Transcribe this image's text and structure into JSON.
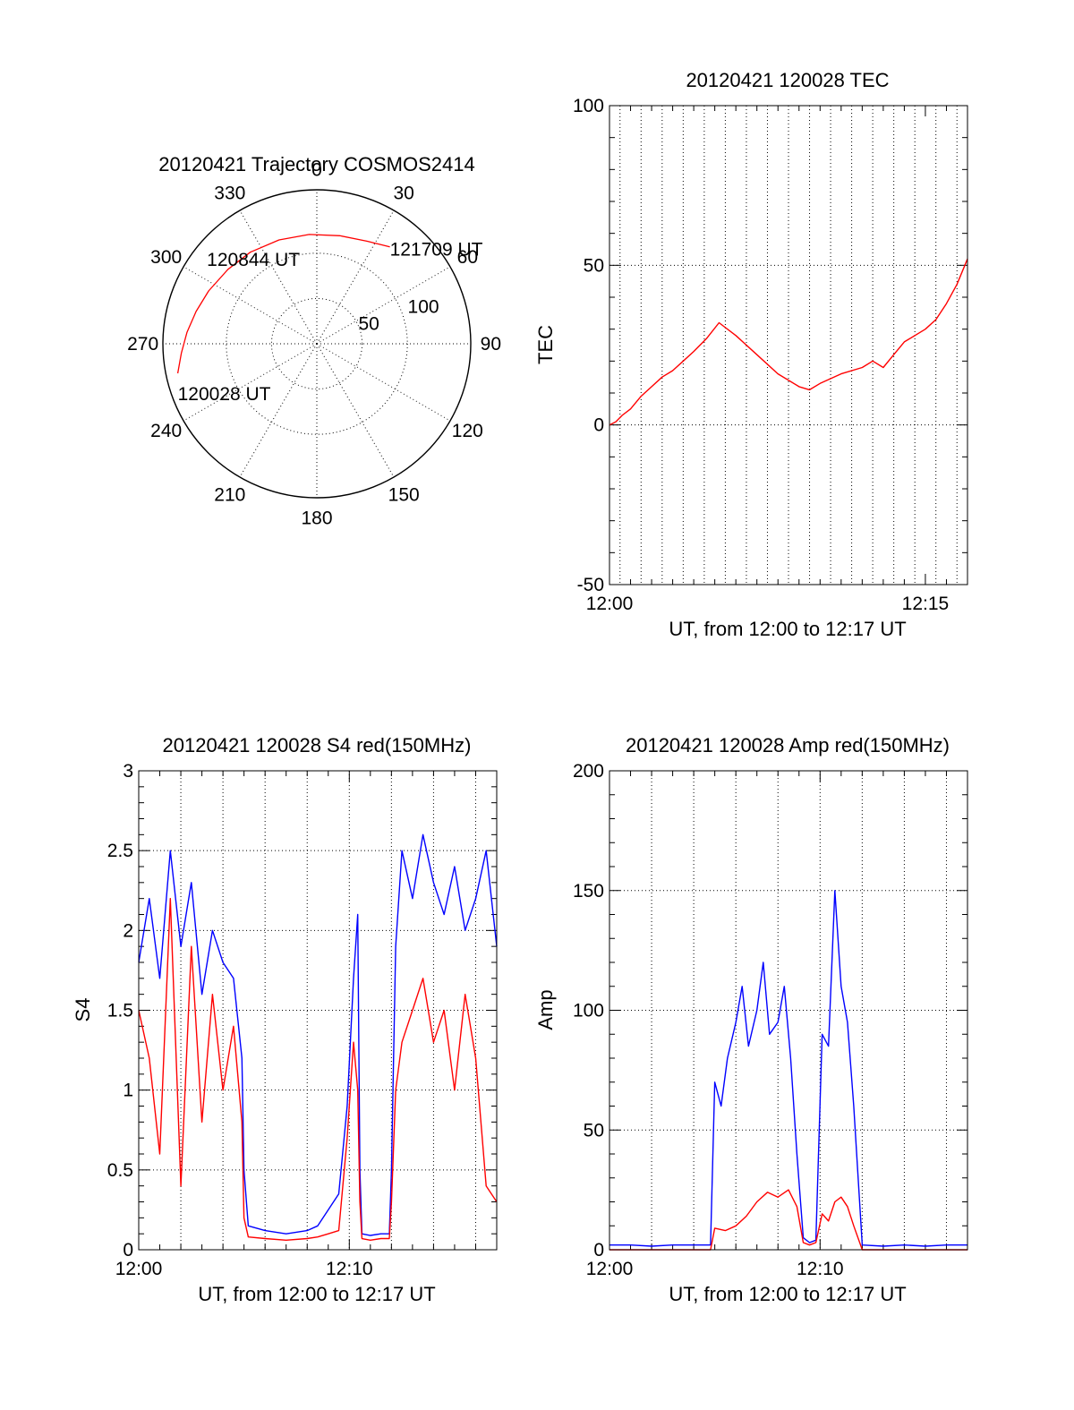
{
  "chart_data": [
    {
      "id": "trajectory",
      "type": "polar",
      "title": "20120421 Trajectory COSMOS2414",
      "azimuth_labels": [
        "0",
        "30",
        "60",
        "90",
        "120",
        "150",
        "180",
        "210",
        "240",
        "270",
        "300",
        "330"
      ],
      "azimuth_values": [
        0,
        30,
        60,
        90,
        120,
        150,
        180,
        210,
        240,
        270,
        300,
        330
      ],
      "radial_labels": [
        "50",
        "100"
      ],
      "radial_values": [
        50,
        100
      ],
      "radial_range": [
        0,
        170
      ],
      "grid": true,
      "series": [
        {
          "color": "#ff0000",
          "points": [
            {
              "az": 258,
              "r": 157
            },
            {
              "az": 266,
              "r": 150
            },
            {
              "az": 275,
              "r": 144
            },
            {
              "az": 285,
              "r": 138
            },
            {
              "az": 296,
              "r": 133
            },
            {
              "az": 310,
              "r": 128
            },
            {
              "az": 324,
              "r": 125
            },
            {
              "az": 340,
              "r": 122
            },
            {
              "az": 356,
              "r": 121
            },
            {
              "az": 12,
              "r": 122
            },
            {
              "az": 26,
              "r": 126
            },
            {
              "az": 37,
              "r": 134
            }
          ]
        }
      ],
      "annotations": [
        {
          "text": "121709 UT",
          "az": 37,
          "r": 134
        },
        {
          "text": "120844 UT",
          "az": 320,
          "r": 112
        },
        {
          "text": "120028 UT",
          "az": 258,
          "r": 157
        }
      ]
    },
    {
      "id": "tec",
      "type": "line",
      "title": "20120421 120028 TEC",
      "xlabel": "UT, from 12:00 to 12:17 UT",
      "ylabel": "TEC",
      "xlim": [
        0,
        17
      ],
      "ylim": [
        -50,
        100
      ],
      "x_ticks": [
        0,
        15
      ],
      "x_tick_labels": [
        "12:00",
        "12:15"
      ],
      "x_minor_grid": [
        0.5,
        1.5,
        2.5,
        3.5,
        4.5,
        5.5,
        6.5,
        7.5,
        8.5,
        9.5,
        10.5,
        11.5,
        12.5,
        13.5,
        14.5,
        15.5,
        16.5
      ],
      "y_ticks": [
        -50,
        0,
        50,
        100
      ],
      "grid": true,
      "series": [
        {
          "color": "#ff0000",
          "x": [
            0.0,
            0.3,
            0.6,
            1.0,
            1.5,
            2.0,
            2.5,
            3.0,
            3.5,
            4.0,
            4.6,
            5.2,
            6.0,
            7.0,
            8.0,
            9.0,
            9.5,
            10.0,
            11.0,
            12.0,
            12.5,
            13.0,
            13.5,
            14.0,
            15.0,
            15.5,
            16.0,
            16.5,
            17.0
          ],
          "y": [
            0,
            1,
            3,
            5,
            9,
            12,
            15,
            17,
            20,
            23,
            27,
            32,
            28,
            22,
            16,
            12,
            11,
            13,
            16,
            18,
            20,
            18,
            22,
            26,
            30,
            33,
            38,
            44,
            52
          ]
        }
      ]
    },
    {
      "id": "s4",
      "type": "line",
      "title": "20120421 120028 S4 red(150MHz)",
      "xlabel": "UT, from 12:00 to 12:17 UT",
      "ylabel": "S4",
      "xlim": [
        0,
        17
      ],
      "ylim": [
        0,
        3
      ],
      "x_ticks": [
        0,
        10
      ],
      "x_tick_labels": [
        "12:00",
        "12:10"
      ],
      "x_minor_grid": [
        2,
        4,
        6,
        8,
        10,
        12,
        14,
        16
      ],
      "y_ticks": [
        0,
        0.5,
        1,
        1.5,
        2,
        2.5,
        3
      ],
      "y_tick_labels": [
        "0",
        "0.5",
        "1",
        "1.5",
        "2",
        "2.5",
        "3"
      ],
      "grid": true,
      "series": [
        {
          "color": "#0000ff",
          "x": [
            0.0,
            0.5,
            1.0,
            1.5,
            2.0,
            2.5,
            3.0,
            3.5,
            4.0,
            4.5,
            4.9,
            5.0,
            5.2,
            6.0,
            7.0,
            8.0,
            8.5,
            9.0,
            9.5,
            9.9,
            10.2,
            10.4,
            10.5,
            10.6,
            11.0,
            11.5,
            11.9,
            12.0,
            12.2,
            12.5,
            13.0,
            13.5,
            14.0,
            14.5,
            15.0,
            15.5,
            16.0,
            16.5,
            17.0
          ],
          "y": [
            1.8,
            2.2,
            1.7,
            2.5,
            1.9,
            2.3,
            1.6,
            2.0,
            1.8,
            1.7,
            1.2,
            0.5,
            0.15,
            0.12,
            0.1,
            0.12,
            0.15,
            0.25,
            0.35,
            0.9,
            1.7,
            2.1,
            0.5,
            0.1,
            0.09,
            0.1,
            0.1,
            0.5,
            1.9,
            2.5,
            2.2,
            2.6,
            2.3,
            2.1,
            2.4,
            2.0,
            2.2,
            2.5,
            1.9
          ]
        },
        {
          "color": "#ff0000",
          "x": [
            0.0,
            0.5,
            1.0,
            1.5,
            2.0,
            2.5,
            3.0,
            3.5,
            4.0,
            4.5,
            4.9,
            5.0,
            5.2,
            6.0,
            7.0,
            8.0,
            8.5,
            9.0,
            9.5,
            9.9,
            10.2,
            10.4,
            10.5,
            10.6,
            11.0,
            11.5,
            11.9,
            12.0,
            12.2,
            12.5,
            13.0,
            13.5,
            14.0,
            14.5,
            15.0,
            15.5,
            16.0,
            16.5,
            17.0
          ],
          "y": [
            1.5,
            1.2,
            0.6,
            2.2,
            0.4,
            1.9,
            0.8,
            1.6,
            1.0,
            1.4,
            0.8,
            0.2,
            0.08,
            0.07,
            0.06,
            0.07,
            0.08,
            0.1,
            0.12,
            0.7,
            1.3,
            1.0,
            0.3,
            0.07,
            0.06,
            0.07,
            0.07,
            0.3,
            1.0,
            1.3,
            1.5,
            1.7,
            1.3,
            1.5,
            1.0,
            1.6,
            1.2,
            0.4,
            0.3
          ]
        }
      ]
    },
    {
      "id": "amp",
      "type": "line",
      "title": "20120421 120028 Amp red(150MHz)",
      "xlabel": "UT, from 12:00 to 12:17 UT",
      "ylabel": "Amp",
      "xlim": [
        0,
        17
      ],
      "ylim": [
        0,
        200
      ],
      "x_ticks": [
        0,
        10
      ],
      "x_tick_labels": [
        "12:00",
        "12:10"
      ],
      "x_minor_grid": [
        2,
        4,
        6,
        8,
        10,
        12,
        14,
        16
      ],
      "y_ticks": [
        0,
        50,
        100,
        150,
        200
      ],
      "grid": true,
      "series": [
        {
          "color": "#0000ff",
          "x": [
            0.0,
            1.0,
            2.0,
            3.0,
            4.0,
            4.5,
            4.8,
            5.0,
            5.3,
            5.6,
            6.0,
            6.3,
            6.6,
            7.0,
            7.3,
            7.6,
            8.0,
            8.3,
            8.6,
            8.9,
            9.2,
            9.5,
            9.8,
            10.1,
            10.4,
            10.7,
            11.0,
            11.3,
            11.6,
            12.0,
            13.0,
            14.0,
            15.0,
            16.0,
            17.0
          ],
          "y": [
            2,
            2,
            1.5,
            2,
            2,
            2,
            2,
            70,
            60,
            80,
            95,
            110,
            85,
            100,
            120,
            90,
            95,
            110,
            80,
            40,
            5,
            3,
            4,
            90,
            85,
            150,
            110,
            95,
            60,
            2,
            1.5,
            2,
            1.5,
            2,
            2
          ]
        },
        {
          "color": "#ff0000",
          "x": [
            0.0,
            1.0,
            2.0,
            3.0,
            4.0,
            4.5,
            4.8,
            5.0,
            5.5,
            6.0,
            6.5,
            7.0,
            7.5,
            8.0,
            8.5,
            8.9,
            9.2,
            9.5,
            9.8,
            10.1,
            10.4,
            10.7,
            11.0,
            11.3,
            11.6,
            12.0,
            13.0,
            14.0,
            15.0,
            16.0,
            17.0
          ],
          "y": [
            0,
            0,
            0,
            0,
            0,
            0,
            0,
            9,
            8,
            10,
            14,
            20,
            24,
            22,
            25,
            18,
            3,
            2,
            3,
            15,
            12,
            20,
            22,
            18,
            10,
            0,
            0,
            0,
            0,
            0,
            0
          ]
        }
      ]
    }
  ]
}
